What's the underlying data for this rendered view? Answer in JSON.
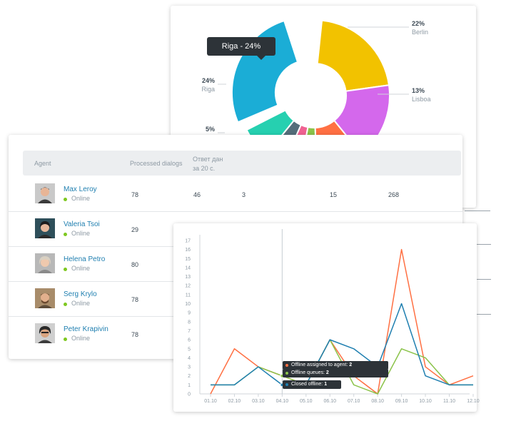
{
  "donut": {
    "tooltip": "Riga - 24%",
    "slices": [
      {
        "city": "Berlin",
        "pct": "22%",
        "color": "#f2c200"
      },
      {
        "city": "Lisboa",
        "pct": "13%",
        "color": "#d468ec"
      },
      {
        "city": "",
        "pct": "",
        "color": "#ff7043"
      },
      {
        "city": "",
        "pct": "",
        "color": "#8bc34a"
      },
      {
        "city": "",
        "pct": "",
        "color": "#f06292"
      },
      {
        "city": "",
        "pct": "",
        "color": "#546e7a"
      },
      {
        "city": "",
        "pct": "5%",
        "color": "#26d0b0"
      },
      {
        "city": "Riga",
        "pct": "24%",
        "color": "#1badd6"
      }
    ]
  },
  "table": {
    "headers": [
      "Agent",
      "Processed dialogs",
      "Ответ дан",
      "за 20 с."
    ],
    "rows": [
      {
        "name": "Max Leroy",
        "status": "Online",
        "values": [
          "78",
          "46",
          "3",
          "15",
          "268"
        ]
      },
      {
        "name": "Valeria Tsoi",
        "status": "Online",
        "values": [
          "29"
        ]
      },
      {
        "name": "Helena Petro",
        "status": "Online",
        "values": [
          "80"
        ]
      },
      {
        "name": "Serg Krylo",
        "status": "Online",
        "values": [
          "78"
        ]
      },
      {
        "name": "Peter Krapivin",
        "status": "Online",
        "values": [
          "78"
        ]
      }
    ]
  },
  "line_chart": {
    "tooltip": [
      {
        "label": "Offline assigned to agent:",
        "value": "2",
        "color": "#ff7043"
      },
      {
        "label": "Offline queues:",
        "value": "2",
        "color": "#8bc34a"
      },
      {
        "label": "Closed offline:",
        "value": "1",
        "color": "#1f7fb0"
      }
    ]
  },
  "chart_data": {
    "type": "line",
    "x": [
      "01.10",
      "02.10",
      "03.10",
      "04.10",
      "05.10",
      "06.10",
      "07.10",
      "08.10",
      "09.10",
      "10.10",
      "11.10",
      "12.10"
    ],
    "ylim": [
      0,
      17
    ],
    "yticks": [
      0,
      1,
      2,
      3,
      4,
      5,
      6,
      7,
      8,
      9,
      10,
      11,
      12,
      13,
      14,
      15,
      16,
      17
    ],
    "series": [
      {
        "name": "Offline assigned to agent",
        "color": "#ff7043",
        "values": [
          0,
          5,
          3,
          2,
          1,
          6,
          2,
          0,
          16,
          3,
          1,
          2
        ]
      },
      {
        "name": "Offline queues",
        "color": "#8bc34a",
        "values": [
          1,
          1,
          3,
          2,
          1,
          6,
          1,
          0,
          5,
          4,
          1,
          1
        ]
      },
      {
        "name": "Closed offline",
        "color": "#1f7fb0",
        "values": [
          1,
          1,
          3,
          1,
          1,
          6,
          5,
          3,
          10,
          2,
          1,
          1
        ]
      }
    ],
    "hover_x": "04.10"
  }
}
